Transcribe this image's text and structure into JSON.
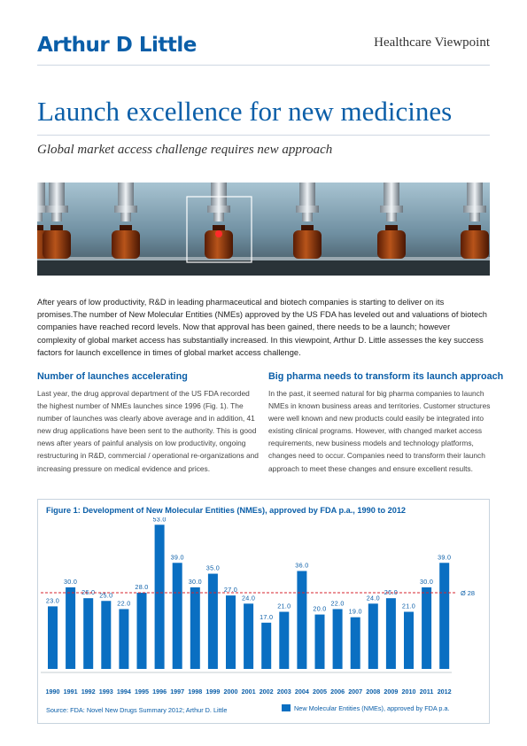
{
  "header": {
    "logo": "Arthur D Little",
    "viewpoint": "Healthcare Viewpoint",
    "title": "Launch excellence for new medicines",
    "subtitle": "Global market access challenge requires new approach"
  },
  "intro": "After years of low productivity, R&D in leading pharmaceutical and biotech companies is starting to deliver on its promises.The number of New Molecular Entities (NMEs) approved by the US FDA has leveled out and valuations of biotech companies have reached record levels. Now that approval has been gained, there needs to be a launch; however complexity of global market access has substantially increased. In this viewpoint, Arthur D. Little assesses the key success factors for launch excellence in times of global market access challenge.",
  "sections": [
    {
      "heading": "Number of launches accelerating",
      "body": "Last year, the drug approval department of the US FDA recorded the highest number of NMEs launches since 1996 (Fig. 1). The number of launches was clearly above average and in addition, 41 new drug applications have been sent to the authority. This is good news after years of painful analysis on low productivity, ongoing restructuring in R&D, commercial / operational re-organizations and increasing pressure on medical evidence and prices."
    },
    {
      "heading": "Big pharma needs to transform its launch approach",
      "body": "In the past, it seemed natural for big pharma companies to launch NMEs in known business areas and territories. Customer structures were well known and new products could easily be integrated into existing clinical programs. However, with changed market access requirements, new business models and technology platforms, changes need to occur. Companies need to transform their launch approach to meet these changes and ensure excellent results."
    }
  ],
  "figure": {
    "title": "Figure 1: Development of New Molecular Entities (NMEs), approved by FDA p.a., 1990 to 2012",
    "source": "Source: FDA: Novel New Drugs Summary 2012; Arthur D. Little",
    "legend": "New Molecular Entities (NMEs), approved by FDA p.a.",
    "average_label": "Ø 28",
    "bar_color": "#0a6fc2",
    "average_color": "#d7232d"
  },
  "chart_data": {
    "type": "bar",
    "categories": [
      "1990",
      "1991",
      "1992",
      "1993",
      "1994",
      "1995",
      "1996",
      "1997",
      "1998",
      "1999",
      "2000",
      "2001",
      "2002",
      "2003",
      "2004",
      "2005",
      "2006",
      "2007",
      "2008",
      "2009",
      "2010",
      "2011",
      "2012"
    ],
    "series": [
      {
        "name": "New Molecular Entities (NMEs), approved by FDA p.a.",
        "values": [
          23,
          30,
          26,
          25,
          22,
          28,
          53,
          39,
          30,
          35,
          27,
          24,
          17,
          21,
          36,
          20,
          22,
          19,
          24,
          26,
          21,
          30,
          39
        ]
      }
    ],
    "value_labels": [
      "23.0",
      "30.0",
      "26.0",
      "25.0",
      "22.0",
      "28.0",
      "53.0",
      "39.0",
      "30.0",
      "35.0",
      "27.0",
      "24.0",
      "17.0",
      "21.0",
      "36.0",
      "20.0",
      "22.0",
      "19.0",
      "24.0",
      "26.0",
      "21.0",
      "30.0",
      "39.0"
    ],
    "average": 28,
    "grid": false
  }
}
